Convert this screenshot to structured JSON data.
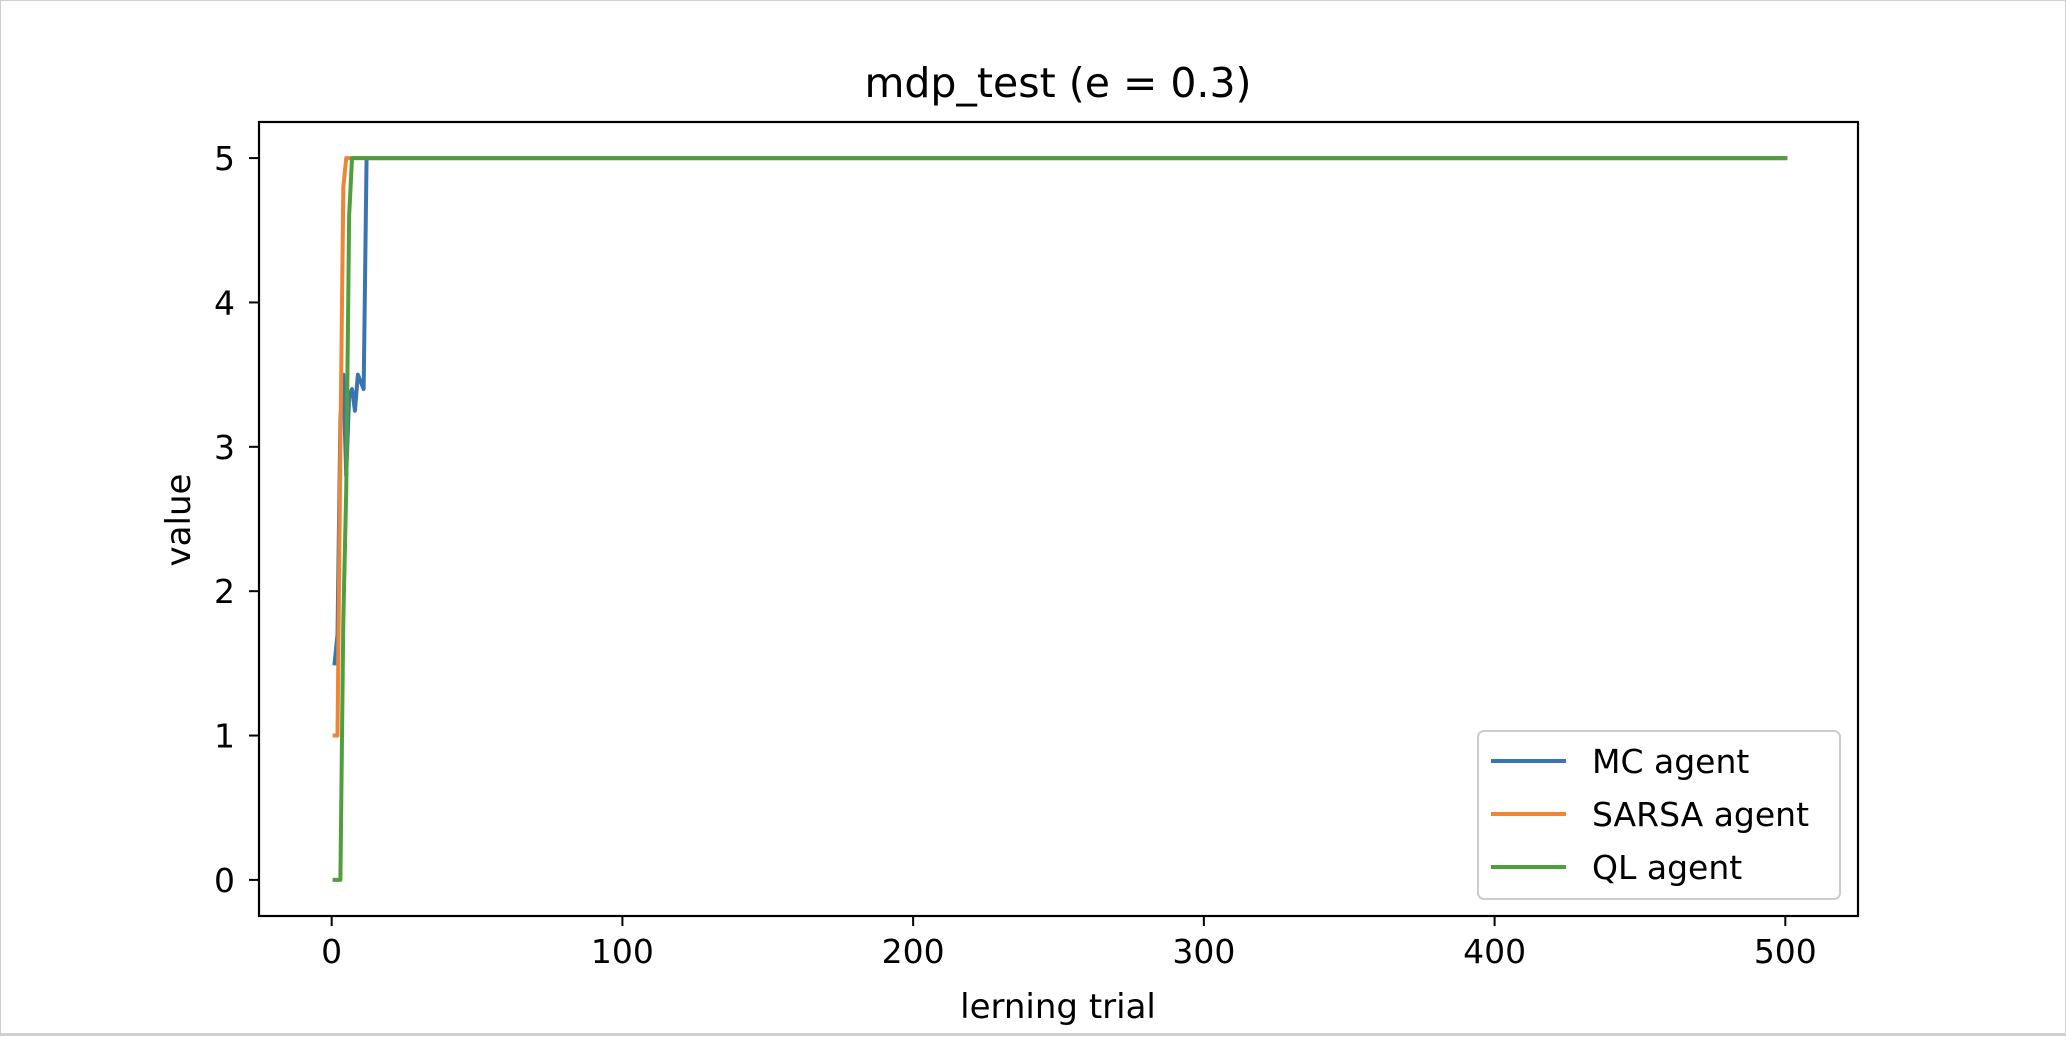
{
  "chart_data": {
    "type": "line",
    "title": "mdp_test (e = 0.3)",
    "xlabel": "lerning trial",
    "ylabel": "value",
    "xlim": [
      -25,
      525
    ],
    "ylim": [
      -0.25,
      5.25
    ],
    "xticks": [
      0,
      100,
      200,
      300,
      400,
      500
    ],
    "yticks": [
      0,
      1,
      2,
      3,
      4,
      5
    ],
    "xtick_labels": [
      "0",
      "100",
      "200",
      "300",
      "400",
      "500"
    ],
    "ytick_labels": [
      "0",
      "1",
      "2",
      "3",
      "4",
      "5"
    ],
    "grid": false,
    "legend_position": "lower-right",
    "series": [
      {
        "name": "MC agent",
        "color": "#3b75af",
        "points": [
          [
            1,
            1.5
          ],
          [
            2,
            1.7
          ],
          [
            3,
            3.2
          ],
          [
            4,
            3.5
          ],
          [
            5,
            2.8
          ],
          [
            6,
            3.35
          ],
          [
            7,
            3.4
          ],
          [
            8,
            3.25
          ],
          [
            9,
            3.5
          ],
          [
            10,
            3.45
          ],
          [
            11,
            3.4
          ],
          [
            12,
            5.0
          ],
          [
            500,
            5.0
          ]
        ]
      },
      {
        "name": "SARSA agent",
        "color": "#ef8636",
        "points": [
          [
            1,
            1.0
          ],
          [
            2,
            1.0
          ],
          [
            3,
            3.0
          ],
          [
            4,
            4.8
          ],
          [
            5,
            5.0
          ],
          [
            500,
            5.0
          ]
        ]
      },
      {
        "name": "QL agent",
        "color": "#519e3e",
        "points": [
          [
            1,
            0.0
          ],
          [
            2,
            0.0
          ],
          [
            3,
            0.0
          ],
          [
            4,
            1.8
          ],
          [
            5,
            2.7
          ],
          [
            6,
            4.6
          ],
          [
            7,
            5.0
          ],
          [
            500,
            5.0
          ]
        ]
      }
    ]
  }
}
